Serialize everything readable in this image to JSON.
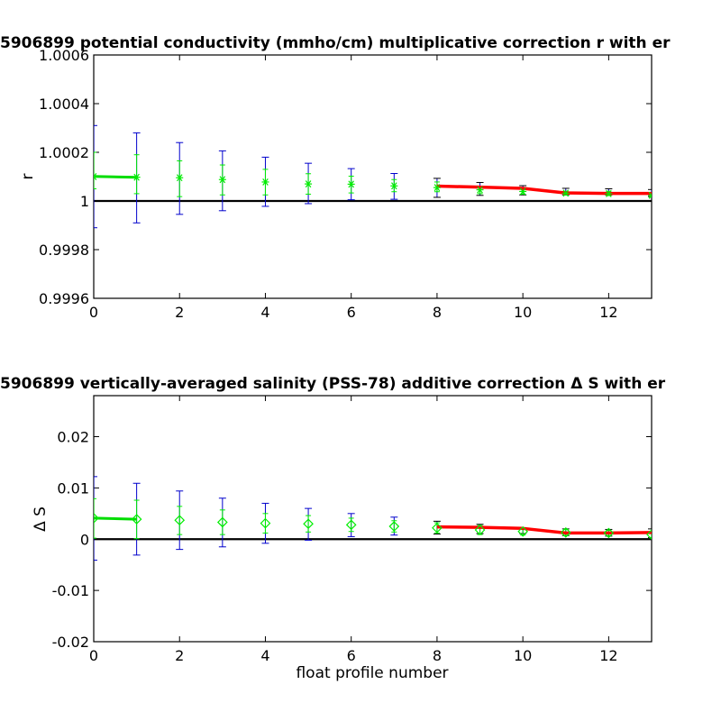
{
  "chart_data": [
    {
      "type": "scatter",
      "title": "5906899 potential conductivity (mmho/cm) multiplicative correction r with er",
      "xlabel": "",
      "ylabel": "r",
      "xlim": [
        0,
        13
      ],
      "ylim": [
        0.9996,
        1.0006
      ],
      "xticks": [
        "0",
        "2",
        "4",
        "6",
        "8",
        "10",
        "12"
      ],
      "yticks": [
        "0.9996",
        "0.9998",
        "1",
        "1.0002",
        "1.0004",
        "1.0006"
      ],
      "reference_line": 1,
      "marker": "asterisk",
      "colors": {
        "points": "#00ee00",
        "outer_error": "#0000cc",
        "inner_error": "#00ee00",
        "fit": "#ff0000",
        "fit_start": "#00dd00",
        "reference": "#000000",
        "late_error": "#000000"
      },
      "x": [
        0,
        1,
        2,
        3,
        4,
        5,
        6,
        7,
        8,
        9,
        10,
        11,
        12,
        13
      ],
      "points": [
        1.0001,
        1.0000975,
        1.0000955,
        1.000088,
        1.000078,
        1.00007,
        1.000069,
        1.000062,
        1.000055,
        1.000046,
        1.000039,
        1.000032,
        1.00003,
        1.000023
      ],
      "error_outer": [
        [
          0.99989,
          1.00031
        ],
        [
          0.99991,
          1.00028
        ],
        [
          0.999945,
          1.00024
        ],
        [
          0.99996,
          1.000206
        ],
        [
          0.999978,
          1.00018
        ],
        [
          0.999989,
          1.000155
        ],
        [
          1.000005,
          1.000133
        ],
        [
          1.000007,
          1.000113
        ],
        [
          1.000015,
          1.000093
        ],
        [
          1.000023,
          1.000076
        ],
        [
          1.000025,
          1.000063
        ],
        [
          1.000025,
          1.000052
        ],
        [
          1.000025,
          1.00005
        ],
        [
          1.000018,
          1.000047
        ]
      ],
      "error_inner": [
        [
          1.00005,
          1.0002
        ],
        [
          1.00003,
          1.00019
        ],
        [
          1.000018,
          1.000165
        ],
        [
          1.000025,
          1.000148
        ],
        [
          1.000025,
          1.00013
        ],
        [
          1.000028,
          1.000112
        ],
        [
          1.000033,
          1.000102
        ],
        [
          1.000038,
          1.000088
        ],
        [
          1.000038,
          1.000078
        ],
        [
          1.00003,
          1.00006
        ],
        [
          1.000028,
          1.00005
        ],
        [
          1.000025,
          1.00004
        ],
        [
          1.000022,
          1.00004
        ],
        [
          1.000016,
          1.000033
        ]
      ],
      "fit_start_line": {
        "x": [
          0,
          1
        ],
        "y": [
          1.000101,
          1.000097
        ]
      },
      "fit_line": {
        "x": [
          8,
          9,
          10,
          11,
          12,
          13
        ],
        "y": [
          1.000061,
          1.000057,
          1.000052,
          1.000033,
          1.000031,
          1.000031
        ]
      }
    },
    {
      "type": "scatter",
      "title": "5906899 vertically-averaged salinity (PSS-78) additive correction Δ S with er",
      "xlabel": "float profile number",
      "ylabel": "Δ S",
      "xlim": [
        0,
        13
      ],
      "ylim": [
        -0.02,
        0.028
      ],
      "xticks": [
        "0",
        "2",
        "4",
        "6",
        "8",
        "10",
        "12"
      ],
      "yticks": [
        "-0.02",
        "-0.01",
        "0",
        "0.01",
        "0.02"
      ],
      "reference_line": 0,
      "marker": "diamond",
      "colors": {
        "points": "#00ee00",
        "outer_error": "#0000cc",
        "inner_error": "#00ee00",
        "fit": "#ff0000",
        "fit_start": "#00dd00",
        "reference": "#000000",
        "late_error": "#000000"
      },
      "x": [
        0,
        1,
        2,
        3,
        4,
        5,
        6,
        7,
        8,
        9,
        10,
        11,
        12,
        13
      ],
      "points": [
        0.0041,
        0.0039,
        0.0037,
        0.0033,
        0.0031,
        0.003,
        0.0028,
        0.0025,
        0.0022,
        0.0018,
        0.0015,
        0.0013,
        0.0012,
        0.0009
      ],
      "error_outer": [
        [
          -0.0041,
          0.0122
        ],
        [
          -0.0031,
          0.0109
        ],
        [
          -0.002,
          0.0094
        ],
        [
          -0.0015,
          0.008
        ],
        [
          -0.0008,
          0.007
        ],
        [
          -0.0002,
          0.006
        ],
        [
          0.0005,
          0.005
        ],
        [
          0.0008,
          0.0043
        ],
        [
          0.001,
          0.0035
        ],
        [
          0.0011,
          0.0029
        ],
        [
          0.0011,
          0.0022
        ],
        [
          0.0007,
          0.002
        ],
        [
          0.0006,
          0.0019
        ],
        [
          0.0003,
          0.002
        ]
      ],
      "error_inner": [
        [
          0.0002,
          0.0079
        ],
        [
          0.0001,
          0.0076
        ],
        [
          0.0009,
          0.0064
        ],
        [
          0.0009,
          0.0057
        ],
        [
          0.0012,
          0.005
        ],
        [
          0.0014,
          0.0046
        ],
        [
          0.0015,
          0.0041
        ],
        [
          0.0014,
          0.0036
        ],
        [
          0.0012,
          0.0032
        ],
        [
          0.0009,
          0.0027
        ],
        [
          0.0008,
          0.0022
        ],
        [
          0.0007,
          0.0019
        ],
        [
          0.0007,
          0.0017
        ],
        [
          0.0003,
          0.0015
        ]
      ],
      "fit_start_line": {
        "x": [
          0,
          1
        ],
        "y": [
          0.0041,
          0.0039
        ]
      },
      "fit_line": {
        "x": [
          8,
          9,
          10,
          11,
          12,
          13
        ],
        "y": [
          0.0024,
          0.0023,
          0.0021,
          0.0012,
          0.0012,
          0.0013
        ]
      }
    }
  ]
}
